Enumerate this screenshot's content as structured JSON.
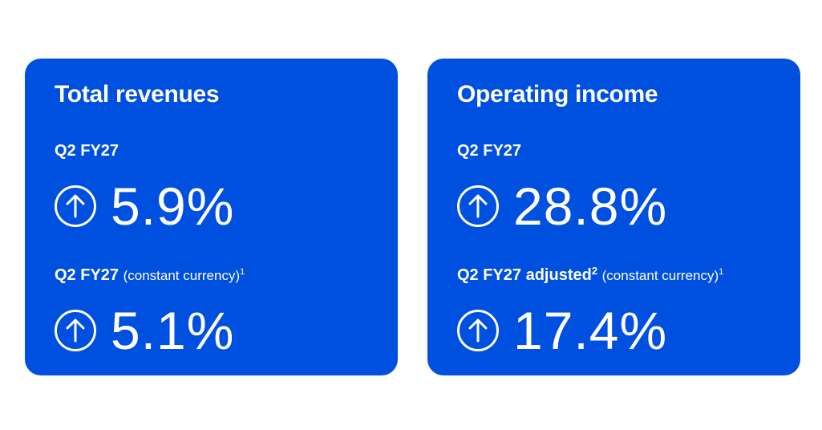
{
  "cards": [
    {
      "title": "Total revenues",
      "metrics": [
        {
          "label": "Q2 FY27",
          "value": "5.9%"
        },
        {
          "label": "Q2 FY27",
          "note": "(constant currency)",
          "note_sup": "1",
          "value": "5.1%"
        }
      ]
    },
    {
      "title": "Operating income",
      "metrics": [
        {
          "label": "Q2 FY27",
          "value": "28.8%"
        },
        {
          "label": "Q2 FY27 adjusted",
          "label_sup": "2",
          "note": "(constant currency)",
          "note_sup": "1",
          "value": "17.4%"
        }
      ]
    }
  ]
}
